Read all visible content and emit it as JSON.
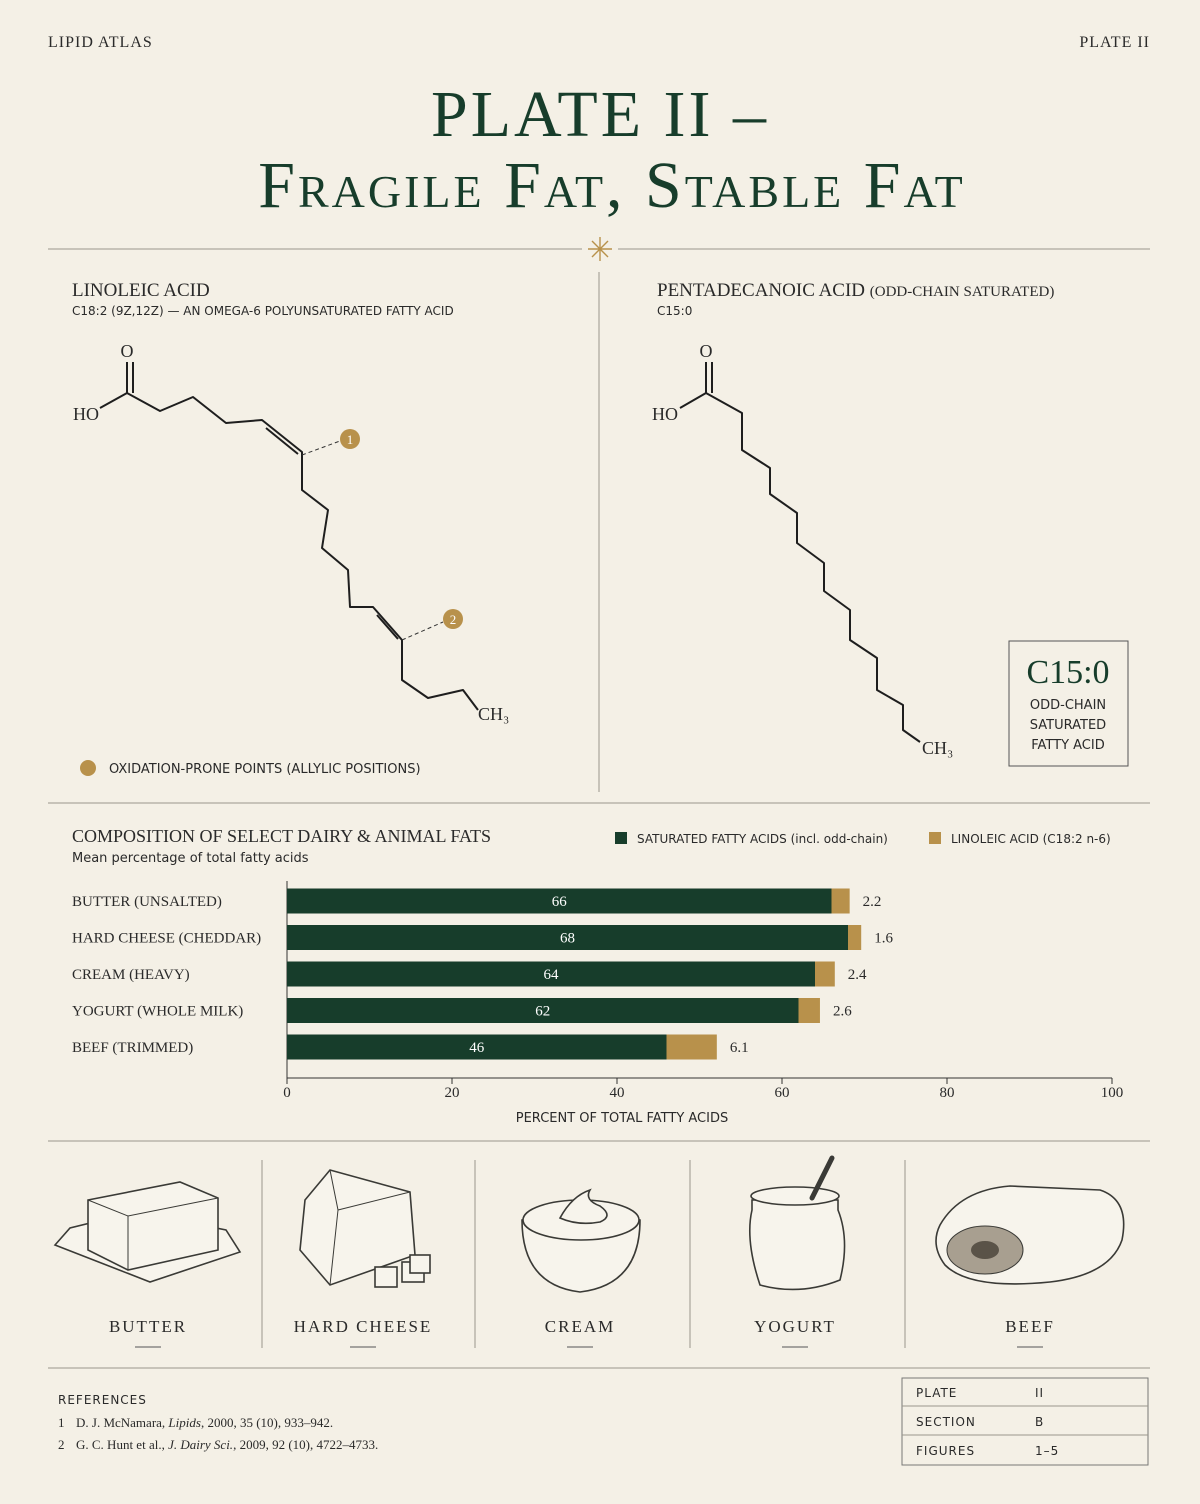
{
  "header": {
    "left": "LIPID ATLAS",
    "right": "PLATE II",
    "title_line1": "PLATE II –",
    "title_line2": "Fragile Fat, Stable Fat"
  },
  "linoleic": {
    "title": "LINOLEIC ACID",
    "subtitle": "C18:2 (9Z,12Z) — AN OMEGA-6 POLYUNSATURATED FATTY ACID",
    "atoms": {
      "o": "O",
      "ho": "HO",
      "ch3": "CH₃"
    },
    "markers": [
      "1",
      "2"
    ],
    "legend": "OXIDATION-PRONE POINTS (ALLYLIC POSITIONS)"
  },
  "pentadecanoic": {
    "title": "PENTADECANOIC ACID",
    "qualifier": "(ODD-CHAIN SATURATED)",
    "subtitle": "C15:0",
    "atoms": {
      "o": "O",
      "ho": "HO",
      "ch3": "CH₃"
    },
    "badge": {
      "formula": "C15:0",
      "lines": [
        "ODD-CHAIN",
        "SATURATED",
        "FATTY ACID"
      ]
    }
  },
  "chart_data": {
    "type": "bar",
    "orientation": "horizontal",
    "stacked": true,
    "title": "COMPOSITION OF SELECT DAIRY & ANIMAL FATS",
    "subtitle": "Mean percentage of total fatty acids",
    "categories": [
      "BUTTER (UNSALTED)",
      "HARD CHEESE (CHEDDAR)",
      "CREAM (HEAVY)",
      "YOGURT (WHOLE MILK)",
      "BEEF (TRIMMED)"
    ],
    "series": [
      {
        "name": "SATURATED FATTY ACIDS (incl. odd-chain)",
        "color": "#173d2b",
        "values": [
          66,
          68,
          64,
          62,
          46
        ]
      },
      {
        "name": "LINOLEIC ACID (C18:2 n-6)",
        "color": "#b8914b",
        "values": [
          2.2,
          1.6,
          2.4,
          2.6,
          6.1
        ]
      }
    ],
    "xlim": [
      0,
      100
    ],
    "xticks": [
      0,
      20,
      40,
      60,
      80,
      100
    ],
    "xlabel": "PERCENT OF TOTAL FATTY ACIDS"
  },
  "foods": [
    "BUTTER",
    "HARD CHEESE",
    "CREAM",
    "YOGURT",
    "BEEF"
  ],
  "references": {
    "heading": "REFERENCES",
    "items": [
      {
        "number": "1",
        "authors": "D. J. McNamara, ",
        "journal": "Lipids",
        "details": ", 2000, 35 (10), 933–942."
      },
      {
        "number": "2",
        "authors": "G. C. Hunt et al., ",
        "journal": "J. Dairy Sci.",
        "details": ", 2009, 92 (10), 4722–4733."
      }
    ]
  },
  "plate_table": {
    "rows": [
      [
        "PLATE",
        "II"
      ],
      [
        "SECTION",
        "B"
      ],
      [
        "FIGURES",
        "1–5"
      ]
    ]
  }
}
